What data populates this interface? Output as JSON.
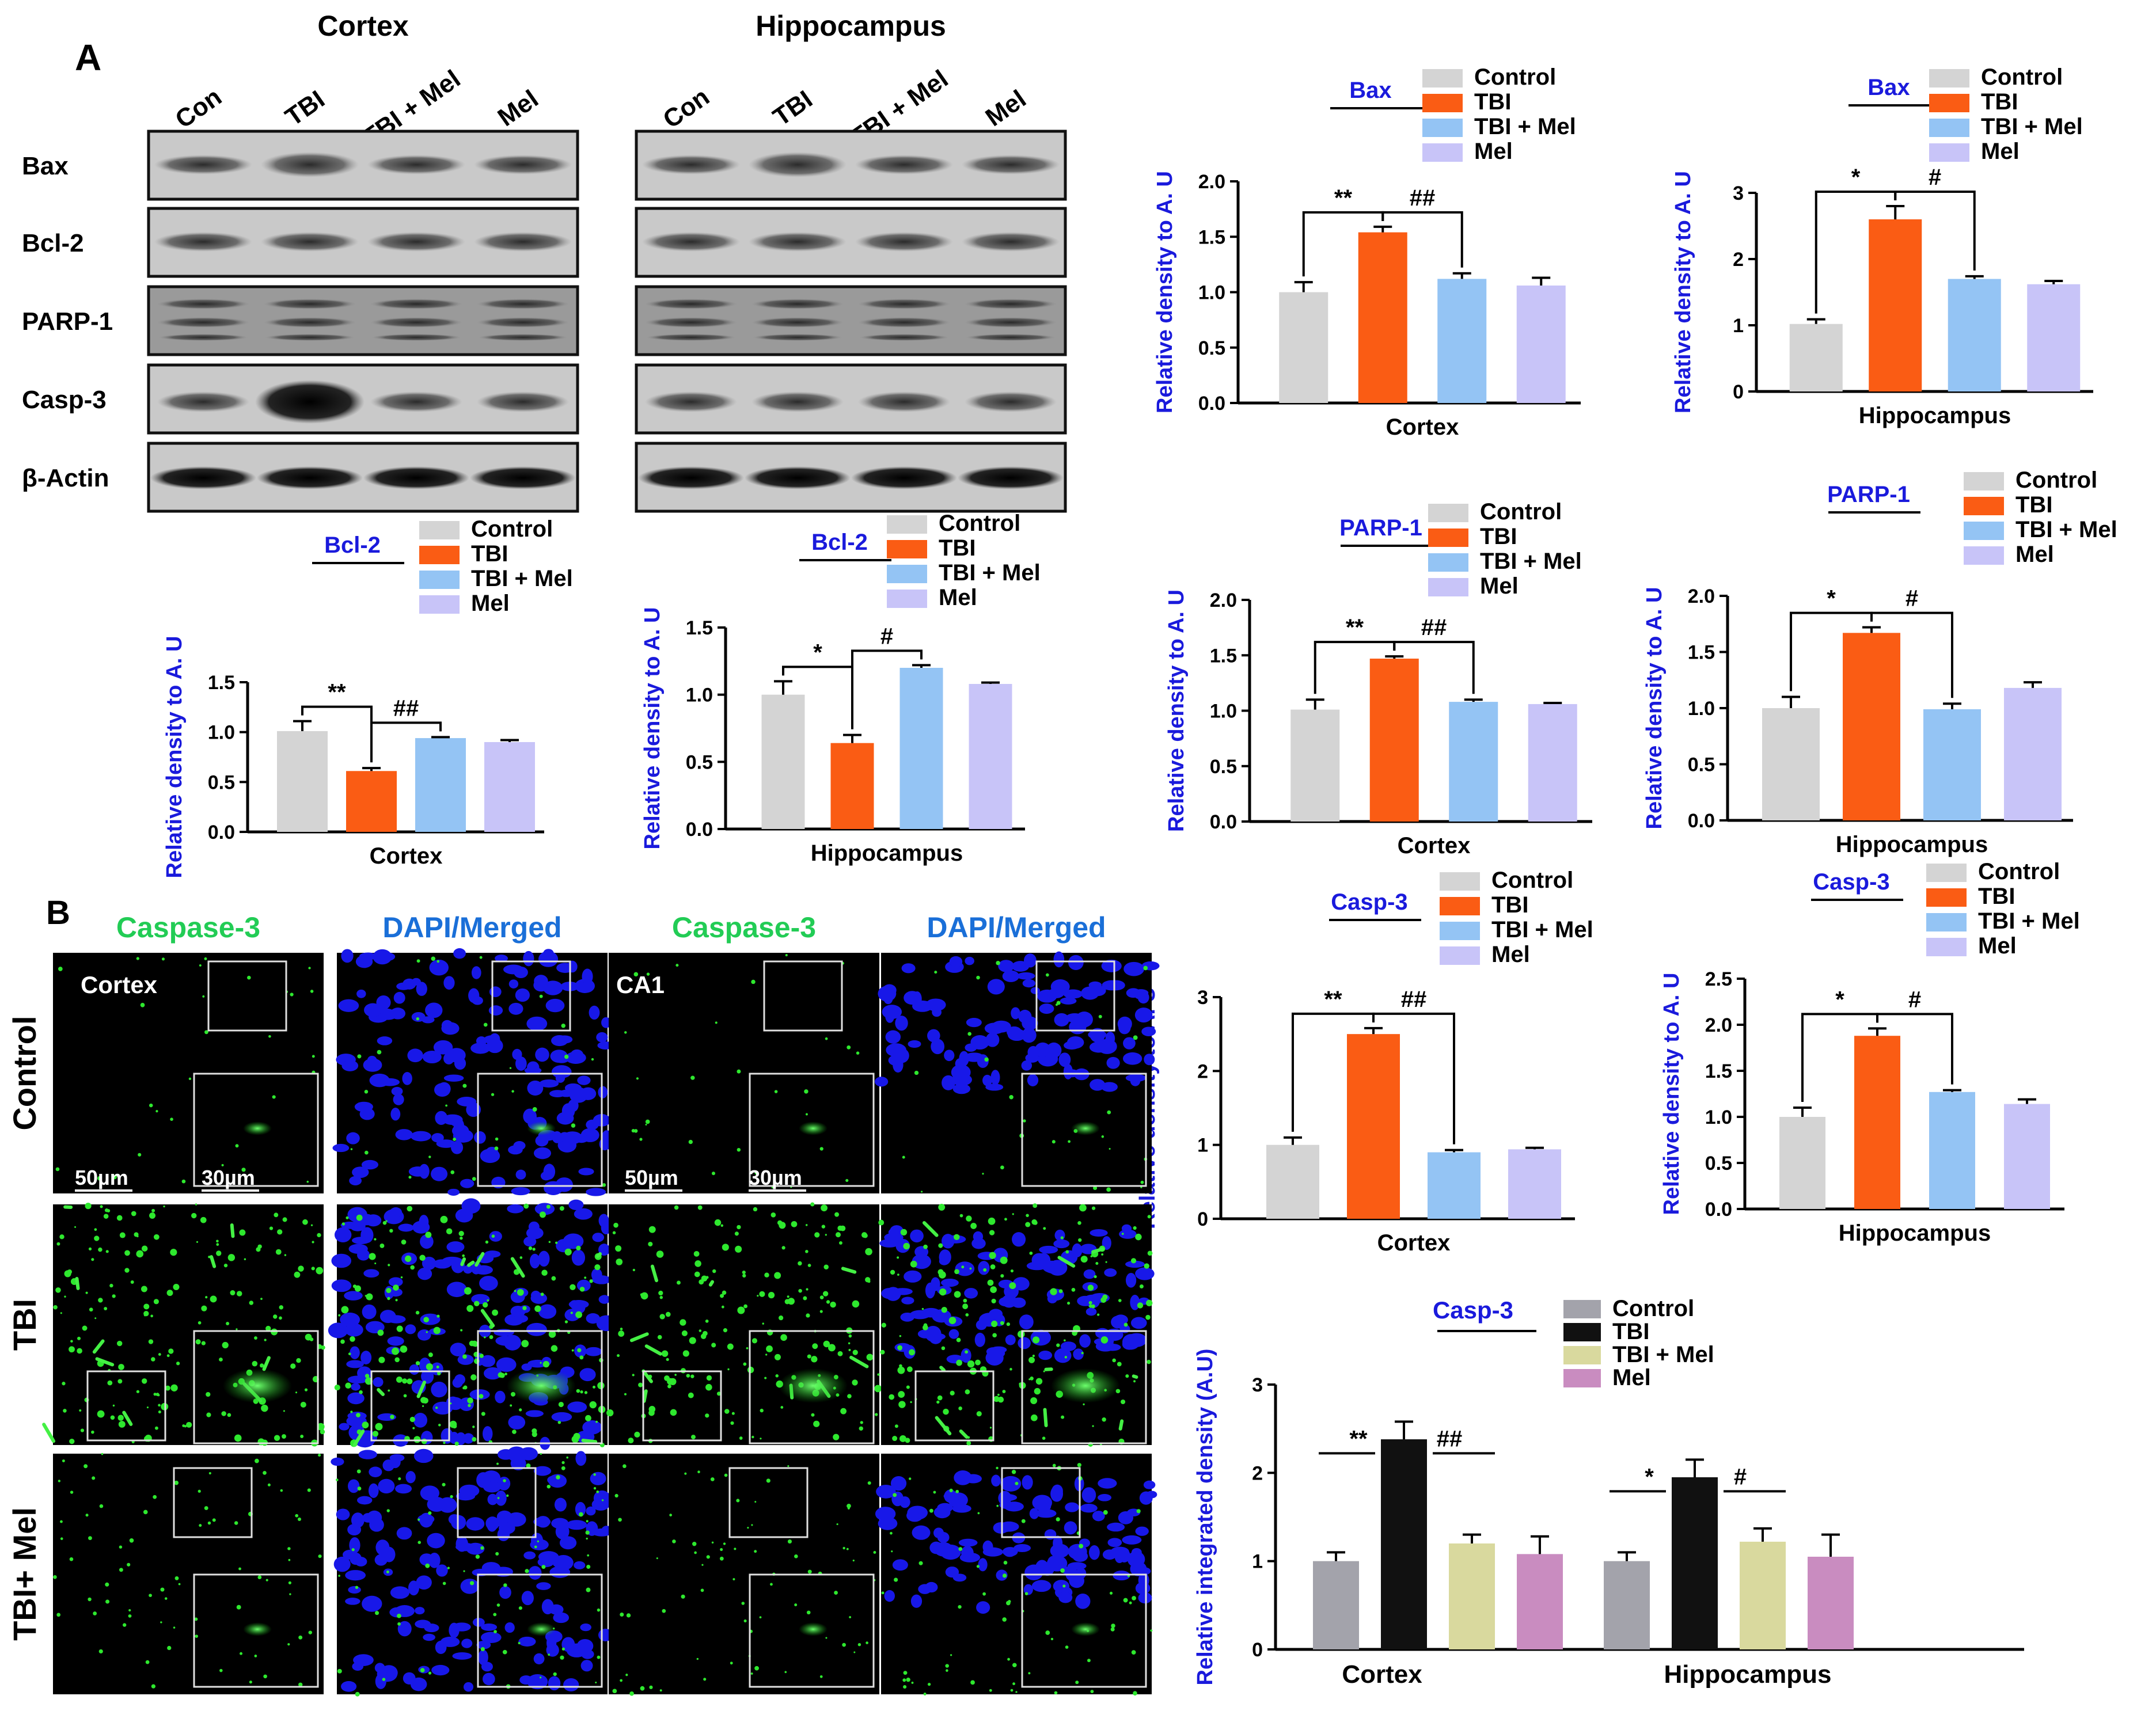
{
  "panel_a": {
    "label": "A",
    "blots": {
      "regions": [
        "Cortex",
        "Hippocampus"
      ],
      "lanes": [
        "Con",
        "TBI",
        "TBI + Mel",
        "Mel"
      ],
      "rows": [
        "Bax",
        "Bcl-2",
        "PARP-1",
        "Casp-3",
        "β-Actin"
      ]
    }
  },
  "panel_b": {
    "label": "B",
    "column_labels": [
      "Caspase-3",
      "DAPI/Merged",
      "Caspase-3",
      "DAPI/Merged"
    ],
    "row_labels": [
      "Control",
      "TBI",
      "TBI+ Mel"
    ],
    "region_tags": [
      "Cortex",
      "CA1"
    ],
    "scale_bars": [
      "50µm",
      "30µm",
      "50µm",
      "30µm"
    ]
  },
  "colors": {
    "Control": "#d4d4d4",
    "TBI": "#fa5c14",
    "TBI + Mel": "#94c4f4",
    "Mel": "#c8c4f8",
    "axis_label": "#1a1adc",
    "if_control": "#a3a3ab",
    "if_tbi": "#111111",
    "if_tbimel": "#d9d99e",
    "if_mel": "#c98cc0"
  },
  "chart_data": [
    {
      "type": "bar",
      "title": "Bax",
      "xlabel": "Cortex",
      "ylabel": "Relative density to A. U",
      "categories": [
        "Control",
        "TBI",
        "TBI + Mel",
        "Mel"
      ],
      "values": [
        1.0,
        1.54,
        1.12,
        1.06
      ],
      "errors": [
        0.09,
        0.05,
        0.05,
        0.07
      ],
      "ylim": [
        0,
        2.0
      ],
      "yticks": [
        "0.0",
        "0.5",
        "1.0",
        "1.5",
        "2.0"
      ],
      "annotations": [
        "**",
        "##"
      ],
      "legend": "top-right"
    },
    {
      "type": "bar",
      "title": "Bax",
      "xlabel": "Hippocampus",
      "ylabel": "Relative density to A. U",
      "categories": [
        "Control",
        "TBI",
        "TBI + Mel",
        "Mel"
      ],
      "values": [
        1.02,
        2.6,
        1.7,
        1.62
      ],
      "errors": [
        0.07,
        0.2,
        0.04,
        0.05
      ],
      "ylim": [
        0,
        3
      ],
      "yticks": [
        "0",
        "1",
        "2",
        "3"
      ],
      "annotations": [
        "*",
        "#"
      ],
      "legend": "top-right"
    },
    {
      "type": "bar",
      "title": "Bcl-2",
      "xlabel": "Cortex",
      "ylabel": "Relative density to A. U",
      "categories": [
        "Control",
        "TBI",
        "TBI + Mel",
        "Mel"
      ],
      "values": [
        1.01,
        0.61,
        0.94,
        0.9
      ],
      "errors": [
        0.1,
        0.03,
        0.01,
        0.02
      ],
      "ylim": [
        0,
        1.5
      ],
      "yticks": [
        "0.0",
        "0.5",
        "1.0",
        "1.5"
      ],
      "annotations": [
        "**",
        "##"
      ],
      "legend": "top-right"
    },
    {
      "type": "bar",
      "title": "Bcl-2",
      "xlabel": "Hippocampus",
      "ylabel": "Relative density to A. U",
      "categories": [
        "Control",
        "TBI",
        "TBI + Mel",
        "Mel"
      ],
      "values": [
        1.0,
        0.64,
        1.2,
        1.08
      ],
      "errors": [
        0.1,
        0.06,
        0.02,
        0.01
      ],
      "ylim": [
        0,
        1.5
      ],
      "yticks": [
        "0.0",
        "0.5",
        "1.0",
        "1.5"
      ],
      "annotations": [
        "*",
        "#"
      ],
      "legend": "top-right"
    },
    {
      "type": "bar",
      "title": "PARP-1",
      "xlabel": "Cortex",
      "ylabel": "Relative density to A. U",
      "categories": [
        "Control",
        "TBI",
        "TBI + Mel",
        "Mel"
      ],
      "values": [
        1.01,
        1.47,
        1.08,
        1.06
      ],
      "errors": [
        0.09,
        0.02,
        0.02,
        0.01
      ],
      "ylim": [
        0,
        2.0
      ],
      "yticks": [
        "0.0",
        "0.5",
        "1.0",
        "1.5",
        "2.0"
      ],
      "annotations": [
        "**",
        "##"
      ],
      "legend": "top-right"
    },
    {
      "type": "bar",
      "title": "PARP-1",
      "xlabel": "Hippocampus",
      "ylabel": "Relative density to A. U",
      "categories": [
        "Control",
        "TBI",
        "TBI + Mel",
        "Mel"
      ],
      "values": [
        1.0,
        1.67,
        0.99,
        1.18
      ],
      "errors": [
        0.1,
        0.05,
        0.05,
        0.05
      ],
      "ylim": [
        0,
        2.0
      ],
      "yticks": [
        "0.0",
        "0.5",
        "1.0",
        "1.5",
        "2.0"
      ],
      "annotations": [
        "*",
        "#"
      ],
      "legend": "top-right"
    },
    {
      "type": "bar",
      "title": "Casp-3",
      "xlabel": "Cortex",
      "ylabel": "Relative density to A. U",
      "categories": [
        "Control",
        "TBI",
        "TBI + Mel",
        "Mel"
      ],
      "values": [
        1.0,
        2.5,
        0.9,
        0.94
      ],
      "errors": [
        0.1,
        0.08,
        0.03,
        0.02
      ],
      "ylim": [
        0,
        3
      ],
      "yticks": [
        "0",
        "1",
        "2",
        "3"
      ],
      "annotations": [
        "**",
        "##"
      ],
      "legend": "top-right"
    },
    {
      "type": "bar",
      "title": "Casp-3",
      "xlabel": "Hippocampus",
      "ylabel": "Relative density to A. U",
      "categories": [
        "Control",
        "TBI",
        "TBI + Mel",
        "Mel"
      ],
      "values": [
        1.0,
        1.88,
        1.27,
        1.14
      ],
      "errors": [
        0.1,
        0.08,
        0.02,
        0.05
      ],
      "ylim": [
        0,
        2.5
      ],
      "yticks": [
        "0.0",
        "0.5",
        "1.0",
        "1.5",
        "2.0",
        "2.5"
      ],
      "annotations": [
        "*",
        "#"
      ],
      "legend": "top-right"
    },
    {
      "type": "bar",
      "title": "Casp-3",
      "xlabel": "",
      "ylabel": "Relative integrated density (A.U)",
      "categories": [
        "Cortex",
        "Hippocampus"
      ],
      "series": [
        {
          "name": "Control",
          "values": [
            1.0,
            1.0
          ],
          "errors": [
            0.1,
            0.1
          ]
        },
        {
          "name": "TBI",
          "values": [
            2.38,
            1.95
          ],
          "errors": [
            0.2,
            0.2
          ]
        },
        {
          "name": "TBI + Mel",
          "values": [
            1.2,
            1.22
          ],
          "errors": [
            0.1,
            0.15
          ]
        },
        {
          "name": "Mel",
          "values": [
            1.08,
            1.05
          ],
          "errors": [
            0.2,
            0.25
          ]
        }
      ],
      "ylim": [
        0,
        3
      ],
      "yticks": [
        "0",
        "1",
        "2",
        "3"
      ],
      "annotations": [
        [
          "**",
          "##"
        ],
        [
          "*",
          "#"
        ]
      ],
      "legend": "top-right"
    }
  ]
}
